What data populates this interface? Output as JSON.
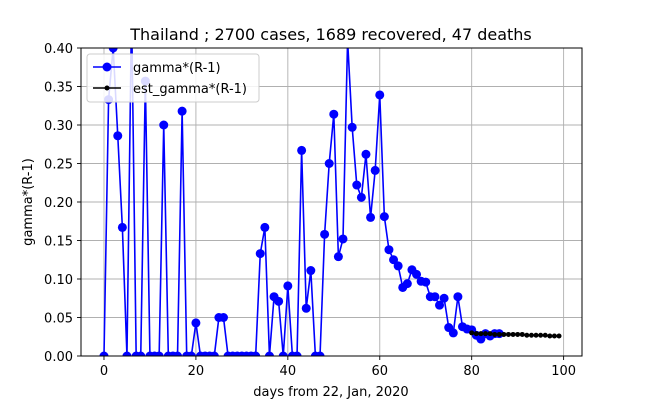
{
  "chart_data": {
    "type": "line",
    "title": "Thailand ; 2700 cases, 1689 recovered, 47 deaths",
    "xlabel": "days from 22, Jan, 2020",
    "ylabel": "gamma*(R-1)",
    "xlim": [
      -5,
      104
    ],
    "ylim": [
      0,
      0.4
    ],
    "xticks": [
      0,
      20,
      40,
      60,
      80,
      100
    ],
    "yticks": [
      0.0,
      0.05,
      0.1,
      0.15,
      0.2,
      0.25,
      0.3,
      0.35,
      0.4
    ],
    "xtick_labels": [
      "0",
      "20",
      "40",
      "60",
      "80",
      "100"
    ],
    "ytick_labels": [
      "0.00",
      "0.05",
      "0.10",
      "0.15",
      "0.20",
      "0.25",
      "0.30",
      "0.35",
      "0.40"
    ],
    "grid": true,
    "legend_position": "top-left",
    "series": [
      {
        "name": "gamma*(R-1)",
        "color": "#0000ff",
        "marker": "circle",
        "points": [
          [
            0,
            0.0
          ],
          [
            1,
            0.333
          ],
          [
            2,
            0.4
          ],
          [
            3,
            0.286
          ],
          [
            4,
            0.167
          ],
          [
            5,
            0.0
          ],
          [
            6,
            0.45
          ],
          [
            7,
            0.0
          ],
          [
            8,
            0.0
          ],
          [
            9,
            0.357
          ],
          [
            10,
            0.0
          ],
          [
            11,
            0.0
          ],
          [
            12,
            0.0
          ],
          [
            13,
            0.3
          ],
          [
            14,
            0.0
          ],
          [
            15,
            0.0
          ],
          [
            16,
            0.0
          ],
          [
            17,
            0.318
          ],
          [
            18,
            0.0
          ],
          [
            19,
            0.0
          ],
          [
            20,
            0.043
          ],
          [
            21,
            0.0
          ],
          [
            22,
            0.0
          ],
          [
            23,
            0.0
          ],
          [
            24,
            0.0
          ],
          [
            25,
            0.05
          ],
          [
            26,
            0.05
          ],
          [
            27,
            0.0
          ],
          [
            28,
            0.0
          ],
          [
            29,
            0.0
          ],
          [
            30,
            0.0
          ],
          [
            31,
            0.0
          ],
          [
            32,
            0.0
          ],
          [
            33,
            0.0
          ],
          [
            34,
            0.133
          ],
          [
            35,
            0.167
          ],
          [
            36,
            0.0
          ],
          [
            37,
            0.077
          ],
          [
            38,
            0.071
          ],
          [
            39,
            0.0
          ],
          [
            40,
            0.091
          ],
          [
            41,
            0.0
          ],
          [
            42,
            0.0
          ],
          [
            43,
            0.267
          ],
          [
            44,
            0.062
          ],
          [
            45,
            0.111
          ],
          [
            46,
            0.0
          ],
          [
            47,
            0.0
          ],
          [
            48,
            0.158
          ],
          [
            49,
            0.25
          ],
          [
            50,
            0.314
          ],
          [
            51,
            0.129
          ],
          [
            52,
            0.152
          ],
          [
            53,
            0.41
          ],
          [
            54,
            0.297
          ],
          [
            55,
            0.222
          ],
          [
            56,
            0.206
          ],
          [
            57,
            0.262
          ],
          [
            58,
            0.18
          ],
          [
            59,
            0.241
          ],
          [
            60,
            0.339
          ],
          [
            61,
            0.181
          ],
          [
            62,
            0.138
          ],
          [
            63,
            0.125
          ],
          [
            64,
            0.117
          ],
          [
            65,
            0.089
          ],
          [
            66,
            0.094
          ],
          [
            67,
            0.112
          ],
          [
            68,
            0.106
          ],
          [
            69,
            0.097
          ],
          [
            70,
            0.096
          ],
          [
            71,
            0.077
          ],
          [
            72,
            0.077
          ],
          [
            73,
            0.066
          ],
          [
            74,
            0.075
          ],
          [
            75,
            0.037
          ],
          [
            76,
            0.03
          ],
          [
            77,
            0.077
          ],
          [
            78,
            0.038
          ],
          [
            79,
            0.035
          ],
          [
            80,
            0.034
          ],
          [
            81,
            0.027
          ],
          [
            82,
            0.022
          ],
          [
            83,
            0.029
          ],
          [
            84,
            0.026
          ],
          [
            85,
            0.029
          ],
          [
            86,
            0.029
          ]
        ]
      },
      {
        "name": "est_gamma*(R-1)",
        "color": "#000000",
        "marker": "small-dot",
        "points": [
          [
            80,
            0.03
          ],
          [
            81,
            0.029
          ],
          [
            82,
            0.029
          ],
          [
            83,
            0.029
          ],
          [
            84,
            0.029
          ],
          [
            85,
            0.028
          ],
          [
            86,
            0.028
          ],
          [
            87,
            0.028
          ],
          [
            88,
            0.028
          ],
          [
            89,
            0.028
          ],
          [
            90,
            0.028
          ],
          [
            91,
            0.028
          ],
          [
            92,
            0.027
          ],
          [
            93,
            0.027
          ],
          [
            94,
            0.027
          ],
          [
            95,
            0.027
          ],
          [
            96,
            0.027
          ],
          [
            97,
            0.026
          ],
          [
            98,
            0.026
          ],
          [
            99,
            0.026
          ]
        ]
      }
    ]
  }
}
